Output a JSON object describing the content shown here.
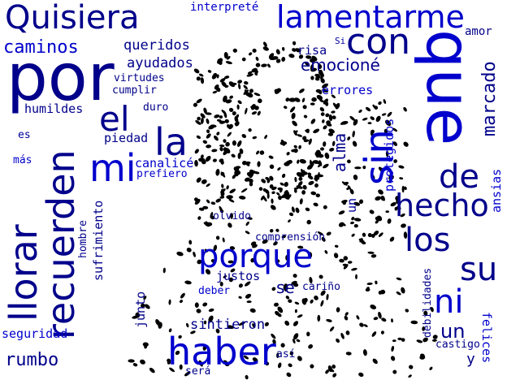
{
  "word_cloud": {
    "colors": {
      "dark": "#00008b",
      "blue": "#0000cd",
      "mid": "#00009e",
      "dots": "#000000",
      "background": "#ffffff"
    },
    "words": {
      "quisiera": "Quisiera",
      "interprete": "interpreté",
      "lamentarme": "lamentarme",
      "por": "por",
      "con": "con",
      "que": "que",
      "amor": "amor",
      "caminos": "caminos",
      "queridos": "queridos",
      "risa": "risa",
      "si": "Si",
      "ayudados": "ayudados",
      "emociones": "emocioné",
      "marcado": "marcado",
      "virtudes": "virtudes",
      "cumplir": "cumplir",
      "errores": "errores",
      "humildes": "humildes",
      "duro": "duro",
      "el": "el",
      "sin": "sin",
      "es": "es",
      "piedad": "piedad",
      "la": "la",
      "mas": "más",
      "mi": "mi",
      "canalice": "canalicé",
      "prefiero": "prefiero",
      "alma": "alma",
      "protegidos": "protegidos",
      "recuerden": "recuerden",
      "de": "de",
      "un_vertical": "un",
      "llorar": "llorar",
      "hecho": "hecho",
      "ansias": "ansias",
      "hombre": "hombre",
      "sufrimiento": "sufrimiento",
      "olvido": "olvido",
      "los": "los",
      "comprension": "comprensión",
      "porque": "porque",
      "su": "su",
      "justos": "justos",
      "deber": "deber",
      "se": "se",
      "carino": "cariño",
      "ni": "ni",
      "debilidades": "debilidades",
      "junto": "junto",
      "sintieron": "sintieron",
      "un": "un",
      "seguridad": "seguridad",
      "haber": "haber",
      "castigo": "castigo",
      "felices": "felices",
      "rumbo": "rumbo",
      "y": "y",
      "asi": "así",
      "sera": "será"
    }
  }
}
